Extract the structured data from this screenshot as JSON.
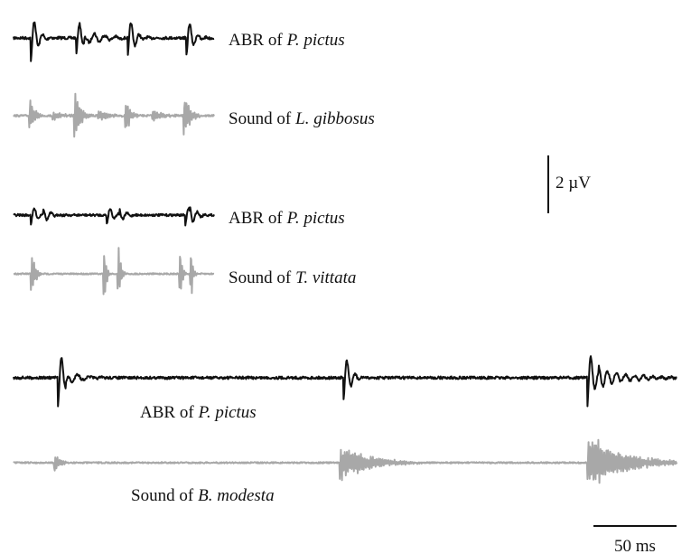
{
  "traces": [
    {
      "prefix": "ABR of",
      "species": "P. pictus"
    },
    {
      "prefix": "Sound of",
      "species": "L. gibbosus"
    },
    {
      "prefix": "ABR of",
      "species": "P. pictus"
    },
    {
      "prefix": "Sound of",
      "species": "T. vittata"
    },
    {
      "prefix": "ABR of",
      "species": "P. pictus"
    },
    {
      "prefix": "Sound of",
      "species": "B. modesta"
    }
  ],
  "scale_bars": {
    "voltage": "2 µV",
    "time": "50 ms"
  }
}
